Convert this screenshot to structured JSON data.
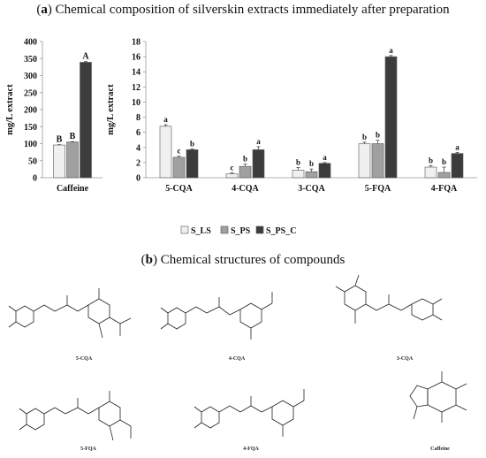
{
  "section_a": {
    "letter": "a",
    "title": "Chemical composition of silverskin extracts immediately after preparation"
  },
  "section_b": {
    "letter": "b",
    "title": "Chemical structures of compounds"
  },
  "colors": {
    "S_LS": "#f0f0f0",
    "S_PS": "#a0a0a0",
    "S_PS_C": "#3c3c3c",
    "axis": "#999999",
    "stroke": "#555555"
  },
  "chart_data": [
    {
      "type": "bar",
      "ylabel": "mg/L extract",
      "ylim": [
        0,
        400
      ],
      "yticks": [
        0,
        50,
        100,
        150,
        200,
        250,
        300,
        350,
        400
      ],
      "categories": [
        "Caffeine"
      ],
      "series": [
        {
          "name": "S_LS",
          "values": [
            96
          ],
          "errors": [
            1
          ],
          "letters": [
            "B"
          ]
        },
        {
          "name": "S_PS",
          "values": [
            105
          ],
          "errors": [
            1
          ],
          "letters": [
            "B"
          ]
        },
        {
          "name": "S_PS_C",
          "values": [
            339
          ],
          "errors": [
            2
          ],
          "letters": [
            "A"
          ]
        }
      ]
    },
    {
      "type": "bar",
      "ylabel": "mg/L extract",
      "ylim": [
        0,
        18
      ],
      "yticks": [
        0,
        2,
        4,
        6,
        8,
        10,
        12,
        14,
        16,
        18
      ],
      "categories": [
        "5-CQA",
        "4-CQA",
        "3-CQA",
        "5-FQA",
        "4-FQA"
      ],
      "series": [
        {
          "name": "S_LS",
          "values": [
            6.8,
            0.5,
            1.0,
            4.5,
            1.4
          ],
          "errors": [
            0.2,
            0.15,
            0.35,
            0.2,
            0.2
          ],
          "letters": [
            "a",
            "c",
            "b",
            "b",
            "b"
          ]
        },
        {
          "name": "S_PS",
          "values": [
            2.7,
            1.5,
            0.8,
            4.5,
            0.7
          ],
          "errors": [
            0.15,
            0.3,
            0.35,
            0.45,
            0.7
          ],
          "letters": [
            "c",
            "b",
            "b",
            "b",
            "b"
          ]
        },
        {
          "name": "S_PS_C",
          "values": [
            3.7,
            3.7,
            1.9,
            16.0,
            3.2
          ],
          "errors": [
            0.1,
            0.4,
            0.1,
            0.15,
            0.15
          ],
          "letters": [
            "b",
            "a",
            "a",
            "a",
            "a"
          ]
        }
      ]
    }
  ],
  "legend": [
    "S_LS",
    "S_PS",
    "S_PS_C"
  ],
  "structures": {
    "s1": {
      "label": "5-CQA"
    },
    "s2": {
      "label": "4-CQA"
    },
    "s3": {
      "label": "3-CQA"
    },
    "s4": {
      "label": "5-FQA"
    },
    "s5": {
      "label": "4-FQA"
    },
    "s6": {
      "label": "Caffeine"
    }
  }
}
